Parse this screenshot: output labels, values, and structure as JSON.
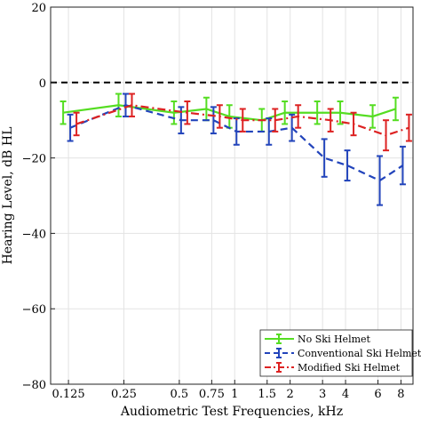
{
  "chart_data": {
    "type": "line",
    "title": "",
    "xlabel": "Audiometric Test Frequencies, kHz",
    "ylabel": "Hearing Level, dB HL",
    "categories": [
      "0.125",
      "0.25",
      "0.5",
      "0.75",
      "1",
      "1.5",
      "2",
      "3",
      "4",
      "6",
      "8"
    ],
    "ylim": [
      -80,
      20
    ],
    "yticks": [
      -80,
      -60,
      -40,
      -20,
      0,
      20
    ],
    "grid": true,
    "reference_line": 0,
    "legend_position": "bottom-right",
    "series": [
      {
        "name": "No Ski Helmet",
        "color": "#55dd22",
        "style": "solid",
        "x": [
          0.125,
          0.25,
          0.5,
          0.75,
          1,
          1.5,
          2,
          3,
          4,
          6,
          8
        ],
        "values": [
          -8,
          -6,
          -8,
          -7,
          -9,
          -10,
          -8,
          -8,
          -8,
          -9,
          -7
        ],
        "err": [
          3,
          3,
          3,
          3,
          3,
          3,
          3,
          3,
          3,
          3,
          3
        ]
      },
      {
        "name": "Conventional Ski Helmet",
        "color": "#2244bb",
        "style": "dashed",
        "x": [
          0.125,
          0.25,
          0.5,
          0.75,
          1,
          1.5,
          2,
          3,
          4,
          6,
          8
        ],
        "values": [
          -12,
          -6,
          -10,
          -10,
          -13,
          -13,
          -12,
          -20,
          -22,
          -26,
          -22
        ],
        "err": [
          3.5,
          3,
          3.5,
          3.5,
          3.5,
          3.5,
          3.5,
          5,
          4,
          6.5,
          5
        ]
      },
      {
        "name": "Modified Ski Helmet",
        "color": "#dd2222",
        "style": "dashdot",
        "x": [
          0.125,
          0.25,
          0.5,
          0.75,
          1,
          1.5,
          2,
          3,
          4,
          6,
          8
        ],
        "values": [
          -11,
          -6,
          -8,
          -9,
          -10,
          -10,
          -9,
          -10,
          -11,
          -14,
          -12
        ],
        "err": [
          3,
          3,
          3,
          3,
          3,
          3,
          3,
          3,
          3,
          4,
          3.5
        ]
      }
    ]
  }
}
